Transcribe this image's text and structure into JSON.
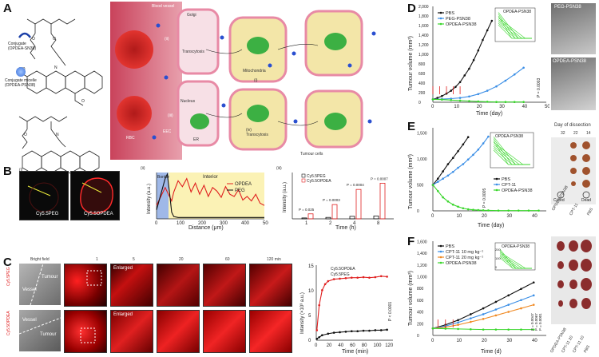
{
  "panels": {
    "A": "A",
    "B": "B",
    "C": "C",
    "D": "D",
    "E": "E",
    "F": "F"
  },
  "panelA": {
    "conjugate_label": "Conjugate\n(OPDEA-SN38)",
    "micelle_label": "Conjugate micelle\n(OPDEA-PSN38)",
    "blood_vessel": "Blood vessel",
    "rbc": "RBC",
    "golgi": "Golgi",
    "mitochondria": "Mitochondria",
    "nucleus": "Nucleus",
    "er": "ER",
    "transcytosis": "Transcytosis",
    "transcytosis_iv": "(iv)\nTranscytosis",
    "tumour_cells": "Tumour cells",
    "i": "(i)",
    "ii": "(ii)",
    "iii": "(iii)",
    "eec": "EEC"
  },
  "panelB": {
    "sub_i": "(i)",
    "sub_ii": "(ii)",
    "sub_iii": "(iii)",
    "img1": "Cy5.5PEG",
    "img2": "Cy5.5OPDEA",
    "border": "Border",
    "interior": "Interior",
    "ii_ylabel": "Intensity (a.u.)",
    "ii_xlabel": "Distance (μm)",
    "ii_xticks": [
      "0",
      "100",
      "200",
      "300",
      "400",
      "500"
    ],
    "legend_opdea": "OPDEA",
    "legend_peg": "PEG",
    "iii_ylabel": "Intensity (a.u.)",
    "iii_xlabel": "Time (h)",
    "iii_xticks": [
      "1",
      "2",
      "4",
      "8"
    ],
    "iii_legend_peg": "Cy5.5PEG",
    "iii_legend_opdea": "Cy5.5OPDEA",
    "pvals": [
      "P = 0.025",
      "P = 0.0003",
      "P = 0.0004",
      "P = 0.0007"
    ]
  },
  "panelC": {
    "bright_field": "Bright field",
    "times": [
      "1",
      "5",
      "20",
      "60",
      "120 min"
    ],
    "tumour": "Tumour",
    "vessel": "Vessel",
    "row1": "Cy5.5PEG",
    "row2": "Cy5.5OPDEA",
    "enlarged": "Enlarged",
    "ylabel": "Intensity (×10³ a.u.)",
    "xlabel": "Time (min)",
    "xticks": [
      "0",
      "20",
      "40",
      "60",
      "80",
      "100",
      "120"
    ],
    "yticks": [
      "0",
      "5",
      "10",
      "15"
    ],
    "legend_opdea": "Cy5.5OPDEA",
    "legend_peg": "Cy5.5PEG",
    "pval": "P < 0.0001"
  },
  "panelD": {
    "ylabel": "Tumour volume (mm³)",
    "xlabel": "Time (day)",
    "yticks": [
      "0",
      "200",
      "400",
      "600",
      "800",
      "1,000",
      "1,200",
      "1,400",
      "1,600",
      "1,800",
      "2,000"
    ],
    "xticks": [
      "0",
      "10",
      "20",
      "30",
      "40",
      "50"
    ],
    "legend": [
      "PBS",
      "PEG-PSN38",
      "OPDEA-PSN38"
    ],
    "inset_title": "OPDEA-PSN38",
    "pval": "P = 0.0003",
    "photo1": "PEG-PSN38",
    "photo2": "OPDEA-PSN38"
  },
  "panelE": {
    "ylabel": "Tumour volume (mm³)",
    "xlabel": "Time (day)",
    "yticks": [
      "0",
      "500",
      "1,000",
      "1,500"
    ],
    "xticks": [
      "0",
      "10",
      "20",
      "30",
      "40"
    ],
    "legend": [
      "PBS",
      "CPT-11",
      "OPDEA-PSN38"
    ],
    "inset_title": "OPDEA-PSN38",
    "pval": "P = 0.0005",
    "dissection_title": "Day of dissection",
    "dissection_days": [
      "32",
      "22",
      "14"
    ],
    "cured": "Cured",
    "dead": "Dead",
    "groups": [
      "OPDEA-PSN38",
      "CPT-11",
      "PBS"
    ]
  },
  "panelF": {
    "ylabel": "Tumour volume (mm³)",
    "xlabel": "Time (d)",
    "yticks": [
      "0",
      "200",
      "400",
      "600",
      "800",
      "1,000",
      "1,200",
      "1,400",
      "1,600"
    ],
    "xticks": [
      "0",
      "10",
      "20",
      "30",
      "40"
    ],
    "legend": [
      "PBS",
      "CPT-11 10 mg kg⁻¹",
      "CPT-11 20 mg kg⁻¹",
      "OPDEA-PSN38"
    ],
    "inset_title": "OPDEA-PSN38",
    "inset_yticks": [
      "0",
      "100",
      "200"
    ],
    "pvals": [
      "P = 0.0047",
      "P = 0.0067",
      "P = 0.0001"
    ],
    "groups": [
      "OPDEA-PSN38",
      "CPT-11 20",
      "CPT-11 10",
      "PBS"
    ]
  },
  "colors": {
    "pbs": "#111111",
    "peg": "#3a8ee6",
    "opdea": "#39d62b",
    "cpt20": "#f08a24",
    "red": "#e02020",
    "cell": "#f3e6a8",
    "membrane": "#e88aa5"
  },
  "chart_data": [
    {
      "type": "line",
      "id": "B_ii",
      "title": "",
      "xlabel": "Distance (μm)",
      "ylabel": "Intensity (a.u.)",
      "xlim": [
        0,
        500
      ],
      "series": [
        {
          "name": "OPDEA",
          "x": [
            0,
            20,
            40,
            60,
            70,
            80,
            100,
            120,
            140,
            160,
            180,
            200,
            220,
            240,
            260,
            280,
            300,
            320,
            340,
            360,
            380,
            400,
            420,
            440,
            460,
            480,
            500
          ],
          "y": [
            0.3,
            0.5,
            0.7,
            0.5,
            0.4,
            0.6,
            0.85,
            0.72,
            0.9,
            0.6,
            0.8,
            0.55,
            0.75,
            0.5,
            0.7,
            0.62,
            0.48,
            0.72,
            0.55,
            0.5,
            0.65,
            0.42,
            0.5,
            0.4,
            0.55,
            0.35,
            0.3
          ]
        },
        {
          "name": "PEG",
          "x": [
            0,
            20,
            40,
            50,
            60,
            70,
            80,
            100,
            200,
            300,
            400,
            500
          ],
          "y": [
            0.2,
            0.55,
            0.9,
            1.0,
            0.6,
            0.15,
            0.05,
            0.03,
            0.03,
            0.03,
            0.03,
            0.03
          ]
        }
      ]
    },
    {
      "type": "bar",
      "id": "B_iii",
      "xlabel": "Time (h)",
      "ylabel": "Intensity (a.u.)",
      "categories": [
        "1",
        "2",
        "4",
        "8"
      ],
      "series": [
        {
          "name": "Cy5.5PEG",
          "values": [
            5,
            8,
            14,
            16
          ]
        },
        {
          "name": "Cy5.5OPDEA",
          "values": [
            28,
            80,
            165,
            200
          ]
        }
      ],
      "ylim": [
        0,
        260
      ]
    },
    {
      "type": "line",
      "id": "C",
      "xlabel": "Time (min)",
      "ylabel": "Intensity (×10³ a.u.)",
      "xlim": [
        0,
        130
      ],
      "ylim": [
        0,
        15
      ],
      "series": [
        {
          "name": "Cy5.5OPDEA",
          "x": [
            1,
            5,
            10,
            15,
            20,
            30,
            40,
            50,
            60,
            70,
            80,
            90,
            100,
            110,
            120
          ],
          "y": [
            2,
            7,
            10,
            11.2,
            11.8,
            12.2,
            12.3,
            12.4,
            12.5,
            12.5,
            12.6,
            12.5,
            12.6,
            12.8,
            12.7
          ]
        },
        {
          "name": "Cy5.5PEG",
          "x": [
            1,
            5,
            10,
            20,
            30,
            40,
            50,
            60,
            70,
            80,
            90,
            100,
            110,
            120
          ],
          "y": [
            0.3,
            0.6,
            1.0,
            1.3,
            1.5,
            1.6,
            1.7,
            1.8,
            1.8,
            1.9,
            1.9,
            2.0,
            2.0,
            2.1
          ]
        }
      ]
    },
    {
      "type": "line",
      "id": "D",
      "xlabel": "Time (day)",
      "ylabel": "Tumour volume (mm³)",
      "xlim": [
        0,
        50
      ],
      "ylim": [
        0,
        2000
      ],
      "series": [
        {
          "name": "PBS",
          "x": [
            0,
            2,
            4,
            6,
            8,
            10,
            12,
            14,
            16,
            18,
            20,
            22,
            24,
            26
          ],
          "y": [
            60,
            90,
            130,
            180,
            240,
            320,
            420,
            560,
            700,
            880,
            1080,
            1300,
            1500,
            1700
          ]
        },
        {
          "name": "PEG-PSN38",
          "x": [
            0,
            4,
            8,
            12,
            16,
            20,
            24,
            28,
            32,
            36,
            40
          ],
          "y": [
            60,
            65,
            75,
            90,
            120,
            170,
            240,
            330,
            450,
            580,
            720
          ]
        },
        {
          "name": "OPDEA-PSN38",
          "x": [
            0,
            4,
            8,
            12,
            16,
            20,
            24,
            28,
            32,
            36,
            40
          ],
          "y": [
            60,
            55,
            45,
            35,
            25,
            15,
            10,
            5,
            5,
            5,
            5
          ]
        }
      ]
    },
    {
      "type": "line",
      "id": "E",
      "xlabel": "Time (day)",
      "ylabel": "Tumour volume (mm³)",
      "xlim": [
        0,
        45
      ],
      "ylim": [
        0,
        1600
      ],
      "series": [
        {
          "name": "PBS",
          "x": [
            0,
            2,
            4,
            6,
            8,
            10,
            12,
            14
          ],
          "y": [
            500,
            620,
            760,
            900,
            1020,
            1150,
            1280,
            1420
          ]
        },
        {
          "name": "CPT-11",
          "x": [
            0,
            2,
            4,
            6,
            8,
            10,
            12,
            14,
            16,
            18,
            20,
            22
          ],
          "y": [
            500,
            560,
            620,
            680,
            750,
            830,
            900,
            990,
            1080,
            1180,
            1300,
            1430
          ]
        },
        {
          "name": "OPDEA-PSN38",
          "x": [
            0,
            2,
            4,
            6,
            8,
            10,
            12,
            14,
            16,
            18,
            20,
            22,
            26,
            30,
            34,
            38,
            42
          ],
          "y": [
            500,
            380,
            260,
            180,
            120,
            80,
            50,
            30,
            20,
            15,
            10,
            8,
            5,
            5,
            5,
            5,
            5
          ]
        }
      ]
    },
    {
      "type": "line",
      "id": "F",
      "xlabel": "Time (d)",
      "ylabel": "Tumour volume (mm³)",
      "xlim": [
        0,
        45
      ],
      "ylim": [
        0,
        1600
      ],
      "series": [
        {
          "name": "PBS",
          "x": [
            0,
            5,
            10,
            15,
            20,
            25,
            30,
            35,
            40
          ],
          "y": [
            120,
            180,
            260,
            360,
            460,
            570,
            680,
            790,
            900
          ]
        },
        {
          "name": "CPT-11 10 mg kg⁻¹",
          "x": [
            0,
            5,
            10,
            15,
            20,
            25,
            30,
            35,
            40
          ],
          "y": [
            120,
            160,
            220,
            290,
            360,
            440,
            520,
            600,
            680
          ]
        },
        {
          "name": "CPT-11 20 mg kg⁻¹",
          "x": [
            0,
            5,
            10,
            15,
            20,
            25,
            30,
            35,
            40
          ],
          "y": [
            120,
            140,
            180,
            230,
            280,
            340,
            400,
            460,
            520
          ]
        },
        {
          "name": "OPDEA-PSN38",
          "x": [
            0,
            5,
            10,
            15,
            20,
            25,
            30,
            35,
            40
          ],
          "y": [
            120,
            115,
            110,
            105,
            100,
            100,
            100,
            100,
            100
          ]
        }
      ]
    }
  ]
}
